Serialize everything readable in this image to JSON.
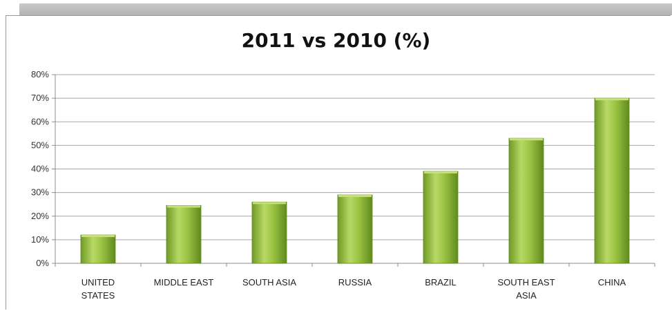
{
  "chart_data": {
    "type": "bar",
    "title": "2011 vs 2010 (%)",
    "categories": [
      "UNITED STATES",
      "MIDDLE EAST",
      "SOUTH ASIA",
      "RUSSIA",
      "BRAZIL",
      "SOUTH EAST ASIA",
      "CHINA"
    ],
    "category_lines": [
      [
        "UNITED",
        "STATES"
      ],
      [
        "MIDDLE EAST"
      ],
      [
        "SOUTH ASIA"
      ],
      [
        "RUSSIA"
      ],
      [
        "BRAZIL"
      ],
      [
        "SOUTH EAST",
        "ASIA"
      ],
      [
        "CHINA"
      ]
    ],
    "values": [
      12,
      24.5,
      26,
      29,
      39,
      53,
      70
    ],
    "ylim": [
      0,
      80
    ],
    "yticks": [
      0,
      10,
      20,
      30,
      40,
      50,
      60,
      70,
      80
    ],
    "ytick_labels": [
      "0%",
      "10%",
      "20%",
      "30%",
      "40%",
      "50%",
      "60%",
      "70%",
      "80%"
    ],
    "xlabel": "",
    "ylabel": "",
    "grid": true,
    "legend": "none",
    "bar_color": "#8dba3a",
    "bar_color_light": "#c6e07a",
    "bar_color_dark": "#5f8a1e"
  }
}
